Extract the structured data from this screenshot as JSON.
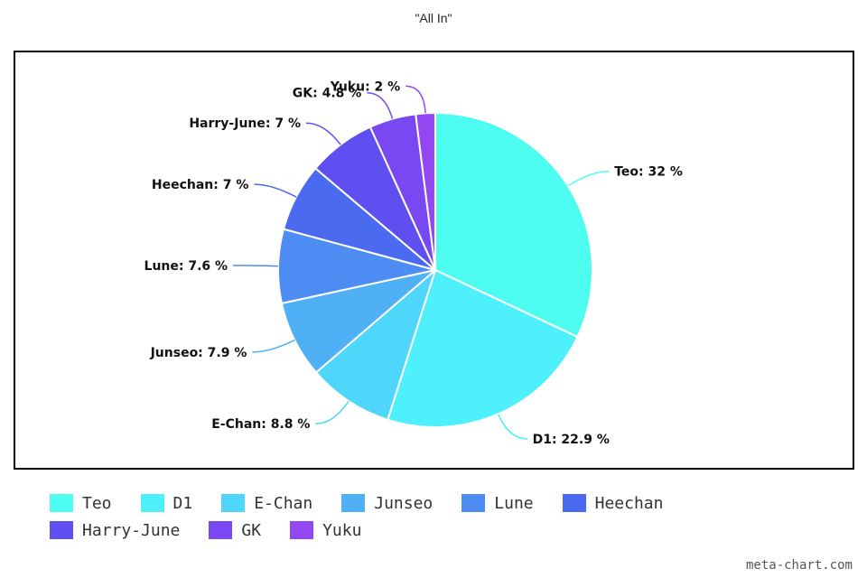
{
  "chart_data": {
    "type": "pie",
    "title": "\"All In\"",
    "slices": [
      {
        "label": "Teo",
        "value": 32,
        "display": "Teo: 32 %",
        "color": "#4dfdf0"
      },
      {
        "label": "D1",
        "value": 22.9,
        "display": "D1: 22.9 %",
        "color": "#4ef0fb"
      },
      {
        "label": "E-Chan",
        "value": 8.8,
        "display": "E-Chan: 8.8 %",
        "color": "#4fd6fb"
      },
      {
        "label": "Junseo",
        "value": 7.9,
        "display": "Junseo: 7.9 %",
        "color": "#4fb0f6"
      },
      {
        "label": "Lune",
        "value": 7.6,
        "display": "Lune: 7.6 %",
        "color": "#4d8cf2"
      },
      {
        "label": "Heechan",
        "value": 7,
        "display": "Heechan: 7 %",
        "color": "#4a6bf0"
      },
      {
        "label": "Harry-June",
        "value": 7,
        "display": "Harry-June: 7 %",
        "color": "#5f4ef0"
      },
      {
        "label": "GK",
        "value": 4.8,
        "display": "GK: 4.8 %",
        "color": "#7a48f2"
      },
      {
        "label": "Yuku",
        "value": 2,
        "display": "Yuku: 2 %",
        "color": "#9446f3"
      }
    ],
    "legend_placement": "bottom"
  },
  "watermark": "meta-chart.com"
}
